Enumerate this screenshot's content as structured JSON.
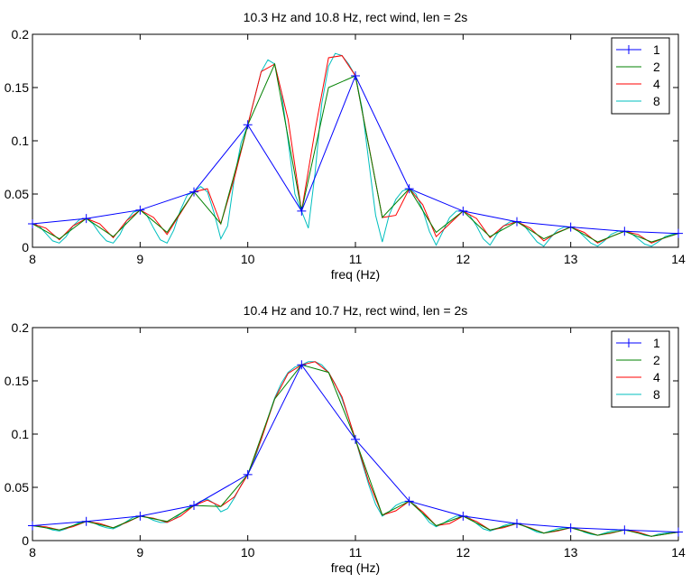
{
  "chart_data": [
    {
      "type": "line",
      "title": "10.3 Hz and 10.8 Hz, rect wind, len = 2s",
      "xlabel": "freq (Hz)",
      "ylabel": "",
      "xlim": [
        8,
        14
      ],
      "ylim": [
        0,
        0.2
      ],
      "xticks": [
        "8",
        "9",
        "10",
        "11",
        "12",
        "13",
        "14"
      ],
      "yticks": [
        "0",
        "0.05",
        "0.1",
        "0.15",
        "0.2"
      ],
      "grid": false,
      "legend_position": "top-right",
      "series": [
        {
          "name": "1",
          "color": "#0000ff",
          "marker": "+",
          "x": [
            8,
            8.5,
            9,
            9.5,
            10,
            10.5,
            11,
            11.5,
            12,
            12.5,
            13,
            13.5,
            14
          ],
          "y": [
            0.022,
            0.027,
            0.035,
            0.052,
            0.115,
            0.034,
            0.161,
            0.055,
            0.034,
            0.024,
            0.019,
            0.015,
            0.013
          ]
        },
        {
          "name": "2",
          "color": "#008000",
          "marker": "",
          "x": [
            8,
            8.25,
            8.5,
            8.75,
            9,
            9.25,
            9.5,
            9.75,
            10,
            10.25,
            10.5,
            10.75,
            11,
            11.25,
            11.5,
            11.75,
            12,
            12.25,
            12.5,
            12.75,
            13,
            13.25,
            13.5,
            13.75,
            14
          ],
          "y": [
            0.022,
            0.008,
            0.027,
            0.01,
            0.035,
            0.014,
            0.052,
            0.022,
            0.115,
            0.172,
            0.034,
            0.15,
            0.161,
            0.028,
            0.055,
            0.014,
            0.034,
            0.01,
            0.024,
            0.008,
            0.019,
            0.005,
            0.015,
            0.005,
            0.013
          ]
        },
        {
          "name": "4",
          "color": "#ff0000",
          "marker": "",
          "x": [
            8,
            8.125,
            8.25,
            8.375,
            8.5,
            8.625,
            8.75,
            8.875,
            9,
            9.125,
            9.25,
            9.375,
            9.5,
            9.625,
            9.75,
            9.875,
            10,
            10.125,
            10.25,
            10.375,
            10.5,
            10.625,
            10.75,
            10.875,
            11,
            11.125,
            11.25,
            11.375,
            11.5,
            11.625,
            11.75,
            11.875,
            12,
            12.125,
            12.25,
            12.375,
            12.5,
            12.625,
            12.75,
            12.875,
            13,
            13.125,
            13.25,
            13.375,
            13.5,
            13.625,
            13.75,
            13.875,
            14
          ],
          "y": [
            0.022,
            0.018,
            0.007,
            0.02,
            0.027,
            0.022,
            0.009,
            0.025,
            0.035,
            0.028,
            0.012,
            0.032,
            0.052,
            0.055,
            0.022,
            0.065,
            0.115,
            0.165,
            0.172,
            0.12,
            0.034,
            0.11,
            0.178,
            0.18,
            0.161,
            0.095,
            0.028,
            0.03,
            0.055,
            0.04,
            0.01,
            0.022,
            0.034,
            0.027,
            0.009,
            0.02,
            0.024,
            0.018,
            0.006,
            0.014,
            0.019,
            0.014,
            0.004,
            0.01,
            0.015,
            0.012,
            0.004,
            0.009,
            0.013
          ]
        },
        {
          "name": "8",
          "color": "#00bfbf",
          "marker": "",
          "x": [
            8,
            8.0625,
            8.125,
            8.1875,
            8.25,
            8.3125,
            8.375,
            8.4375,
            8.5,
            8.5625,
            8.625,
            8.6875,
            8.75,
            8.8125,
            8.875,
            8.9375,
            9,
            9.0625,
            9.125,
            9.1875,
            9.25,
            9.3125,
            9.375,
            9.4375,
            9.5,
            9.5625,
            9.625,
            9.6875,
            9.75,
            9.8125,
            9.875,
            9.9375,
            10,
            10.0625,
            10.125,
            10.1875,
            10.25,
            10.3125,
            10.375,
            10.4375,
            10.5,
            10.5625,
            10.625,
            10.6875,
            10.75,
            10.8125,
            10.875,
            10.9375,
            11,
            11.0625,
            11.125,
            11.1875,
            11.25,
            11.3125,
            11.375,
            11.4375,
            11.5,
            11.5625,
            11.625,
            11.6875,
            11.75,
            11.8125,
            11.875,
            11.9375,
            12,
            12.0625,
            12.125,
            12.1875,
            12.25,
            12.3125,
            12.375,
            12.4375,
            12.5,
            12.5625,
            12.625,
            12.6875,
            12.75,
            12.8125,
            12.875,
            12.9375,
            13,
            13.0625,
            13.125,
            13.1875,
            13.25,
            13.3125,
            13.375,
            13.4375,
            13.5,
            13.5625,
            13.625,
            13.6875,
            13.75,
            13.8125,
            13.875,
            13.9375,
            14
          ],
          "y": [
            0.022,
            0.02,
            0.013,
            0.006,
            0.004,
            0.01,
            0.02,
            0.026,
            0.027,
            0.022,
            0.013,
            0.006,
            0.004,
            0.012,
            0.025,
            0.033,
            0.035,
            0.03,
            0.018,
            0.007,
            0.004,
            0.016,
            0.035,
            0.049,
            0.052,
            0.057,
            0.052,
            0.032,
            0.008,
            0.02,
            0.065,
            0.098,
            0.115,
            0.14,
            0.165,
            0.176,
            0.172,
            0.145,
            0.1,
            0.05,
            0.034,
            0.018,
            0.07,
            0.135,
            0.17,
            0.182,
            0.18,
            0.172,
            0.161,
            0.13,
            0.08,
            0.03,
            0.005,
            0.03,
            0.045,
            0.053,
            0.055,
            0.05,
            0.035,
            0.015,
            0.002,
            0.015,
            0.028,
            0.034,
            0.034,
            0.03,
            0.02,
            0.008,
            0.002,
            0.012,
            0.02,
            0.024,
            0.024,
            0.021,
            0.013,
            0.005,
            0.001,
            0.009,
            0.016,
            0.019,
            0.019,
            0.016,
            0.01,
            0.004,
            0.001,
            0.006,
            0.012,
            0.015,
            0.015,
            0.013,
            0.008,
            0.003,
            0.001,
            0.005,
            0.01,
            0.012,
            0.013
          ]
        }
      ]
    },
    {
      "type": "line",
      "title": "10.4 Hz and 10.7 Hz, rect wind, len = 2s",
      "xlabel": "freq (Hz)",
      "ylabel": "",
      "xlim": [
        8,
        14
      ],
      "ylim": [
        0,
        0.2
      ],
      "xticks": [
        "8",
        "9",
        "10",
        "11",
        "12",
        "13",
        "14"
      ],
      "yticks": [
        "0",
        "0.05",
        "0.1",
        "0.15",
        "0.2"
      ],
      "grid": false,
      "legend_position": "top-right",
      "series": [
        {
          "name": "1",
          "color": "#0000ff",
          "marker": "+",
          "x": [
            8,
            8.5,
            9,
            9.5,
            10,
            10.5,
            11,
            11.5,
            12,
            12.5,
            13,
            13.5,
            14
          ],
          "y": [
            0.014,
            0.018,
            0.023,
            0.033,
            0.062,
            0.165,
            0.095,
            0.037,
            0.023,
            0.016,
            0.012,
            0.01,
            0.008
          ]
        },
        {
          "name": "2",
          "color": "#008000",
          "marker": "",
          "x": [
            8,
            8.25,
            8.5,
            8.75,
            9,
            9.25,
            9.5,
            9.75,
            10,
            10.25,
            10.5,
            10.75,
            11,
            11.25,
            11.5,
            11.75,
            12,
            12.25,
            12.5,
            12.75,
            13,
            13.25,
            13.5,
            13.75,
            14
          ],
          "y": [
            0.014,
            0.01,
            0.018,
            0.012,
            0.023,
            0.018,
            0.033,
            0.032,
            0.062,
            0.133,
            0.165,
            0.158,
            0.095,
            0.024,
            0.037,
            0.014,
            0.023,
            0.01,
            0.016,
            0.007,
            0.012,
            0.005,
            0.01,
            0.004,
            0.008
          ]
        },
        {
          "name": "4",
          "color": "#ff0000",
          "marker": "",
          "x": [
            8,
            8.125,
            8.25,
            8.375,
            8.5,
            8.625,
            8.75,
            8.875,
            9,
            9.125,
            9.25,
            9.375,
            9.5,
            9.625,
            9.75,
            9.875,
            10,
            10.125,
            10.25,
            10.375,
            10.5,
            10.625,
            10.75,
            10.875,
            11,
            11.125,
            11.25,
            11.375,
            11.5,
            11.625,
            11.75,
            11.875,
            12,
            12.125,
            12.25,
            12.375,
            12.5,
            12.625,
            12.75,
            12.875,
            13,
            13.125,
            13.25,
            13.375,
            13.5,
            13.625,
            13.75,
            13.875,
            14
          ],
          "y": [
            0.014,
            0.013,
            0.01,
            0.013,
            0.018,
            0.016,
            0.012,
            0.017,
            0.023,
            0.021,
            0.017,
            0.023,
            0.033,
            0.038,
            0.032,
            0.041,
            0.062,
            0.095,
            0.133,
            0.157,
            0.165,
            0.168,
            0.158,
            0.135,
            0.095,
            0.055,
            0.024,
            0.028,
            0.037,
            0.027,
            0.014,
            0.016,
            0.023,
            0.018,
            0.01,
            0.012,
            0.016,
            0.012,
            0.007,
            0.009,
            0.012,
            0.009,
            0.005,
            0.007,
            0.01,
            0.008,
            0.004,
            0.006,
            0.008
          ]
        },
        {
          "name": "8",
          "color": "#00bfbf",
          "marker": "",
          "x": [
            8,
            8.0625,
            8.125,
            8.1875,
            8.25,
            8.3125,
            8.375,
            8.4375,
            8.5,
            8.5625,
            8.625,
            8.6875,
            8.75,
            8.8125,
            8.875,
            8.9375,
            9,
            9.0625,
            9.125,
            9.1875,
            9.25,
            9.3125,
            9.375,
            9.4375,
            9.5,
            9.5625,
            9.625,
            9.6875,
            9.75,
            9.8125,
            9.875,
            9.9375,
            10,
            10.0625,
            10.125,
            10.1875,
            10.25,
            10.3125,
            10.375,
            10.4375,
            10.5,
            10.5625,
            10.625,
            10.6875,
            10.75,
            10.8125,
            10.875,
            10.9375,
            11,
            11.0625,
            11.125,
            11.1875,
            11.25,
            11.3125,
            11.375,
            11.4375,
            11.5,
            11.5625,
            11.625,
            11.6875,
            11.75,
            11.8125,
            11.875,
            11.9375,
            12,
            12.0625,
            12.125,
            12.1875,
            12.25,
            12.3125,
            12.375,
            12.4375,
            12.5,
            12.5625,
            12.625,
            12.6875,
            12.75,
            12.8125,
            12.875,
            12.9375,
            13,
            13.0625,
            13.125,
            13.1875,
            13.25,
            13.3125,
            13.375,
            13.4375,
            13.5,
            13.5625,
            13.625,
            13.6875,
            13.75,
            13.8125,
            13.875,
            13.9375,
            14
          ],
          "y": [
            0.014,
            0.014,
            0.012,
            0.01,
            0.009,
            0.011,
            0.014,
            0.017,
            0.018,
            0.017,
            0.014,
            0.012,
            0.011,
            0.014,
            0.018,
            0.022,
            0.023,
            0.022,
            0.019,
            0.017,
            0.017,
            0.02,
            0.025,
            0.03,
            0.033,
            0.037,
            0.039,
            0.035,
            0.027,
            0.03,
            0.04,
            0.052,
            0.062,
            0.076,
            0.095,
            0.115,
            0.134,
            0.148,
            0.158,
            0.163,
            0.165,
            0.168,
            0.168,
            0.165,
            0.158,
            0.147,
            0.133,
            0.115,
            0.095,
            0.073,
            0.052,
            0.034,
            0.023,
            0.027,
            0.033,
            0.036,
            0.037,
            0.033,
            0.025,
            0.017,
            0.013,
            0.016,
            0.02,
            0.023,
            0.023,
            0.021,
            0.016,
            0.011,
            0.009,
            0.011,
            0.014,
            0.016,
            0.016,
            0.014,
            0.011,
            0.008,
            0.007,
            0.009,
            0.011,
            0.012,
            0.012,
            0.011,
            0.008,
            0.006,
            0.005,
            0.007,
            0.009,
            0.01,
            0.01,
            0.009,
            0.007,
            0.005,
            0.004,
            0.006,
            0.007,
            0.008,
            0.008
          ]
        }
      ]
    }
  ]
}
